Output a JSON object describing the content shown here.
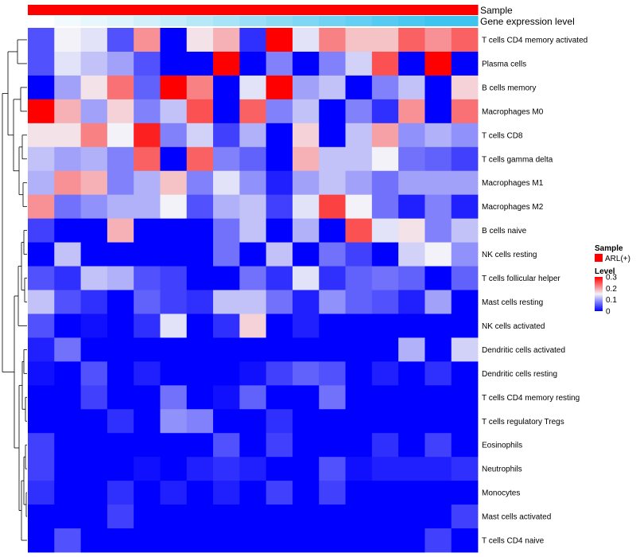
{
  "chart_data": {
    "type": "heatmap",
    "title": "",
    "annotations": {
      "sample_label": "Sample",
      "expression_label": "Gene expression level",
      "sample_color": "#ff0000",
      "expression_colors": [
        "#ffffff",
        "#f2fafd",
        "#e8f7fc",
        "#dff4fb",
        "#d2f0fa",
        "#c4ecf9",
        "#b6e8f8",
        "#a8e4f7",
        "#9adff6",
        "#8cdbf5",
        "#7ed7f4",
        "#71d3f3",
        "#63cff2",
        "#55cbf1",
        "#49c8f0",
        "#3dc5ef"
      ]
    },
    "rows": [
      {
        "label": "T cells CD4 memory activated",
        "values": [
          0.05,
          0.15,
          0.14,
          0.05,
          0.21,
          0.0,
          0.16,
          0.19,
          0.03,
          0.3,
          0.14,
          0.22,
          0.18,
          0.18,
          0.24,
          0.21,
          0.24
        ]
      },
      {
        "label": "Plasma cells",
        "values": [
          0.05,
          0.14,
          0.12,
          0.1,
          0.05,
          0.0,
          0.0,
          0.3,
          0.0,
          0.08,
          0.0,
          0.08,
          0.13,
          0.25,
          0.0,
          0.3,
          0.0
        ]
      },
      {
        "label": "B cells memory",
        "values": [
          0.0,
          0.1,
          0.16,
          0.23,
          0.06,
          0.3,
          0.22,
          0.0,
          0.14,
          0.3,
          0.1,
          0.12,
          0.0,
          0.08,
          0.12,
          0.0,
          0.17
        ]
      },
      {
        "label": "Macrophages M0",
        "values": [
          0.3,
          0.19,
          0.1,
          0.17,
          0.08,
          0.12,
          0.25,
          0.0,
          0.24,
          0.08,
          0.12,
          0.0,
          0.08,
          0.03,
          0.21,
          0.0,
          0.23
        ]
      },
      {
        "label": "T cells CD8",
        "values": [
          0.16,
          0.16,
          0.22,
          0.15,
          0.28,
          0.08,
          0.13,
          0.04,
          0.11,
          0.0,
          0.17,
          0.0,
          0.12,
          0.2,
          0.09,
          0.11,
          0.09
        ]
      },
      {
        "label": "T cells gamma delta",
        "values": [
          0.12,
          0.1,
          0.11,
          0.08,
          0.24,
          0.0,
          0.24,
          0.08,
          0.06,
          0.0,
          0.19,
          0.12,
          0.12,
          0.15,
          0.07,
          0.06,
          0.04
        ]
      },
      {
        "label": "Macrophages M1",
        "values": [
          0.11,
          0.21,
          0.19,
          0.08,
          0.11,
          0.18,
          0.08,
          0.14,
          0.09,
          0.02,
          0.1,
          0.12,
          0.1,
          0.07,
          0.1,
          0.1,
          0.1
        ]
      },
      {
        "label": "Macrophages M2",
        "values": [
          0.21,
          0.07,
          0.09,
          0.11,
          0.11,
          0.15,
          0.05,
          0.11,
          0.12,
          0.04,
          0.14,
          0.26,
          0.15,
          0.07,
          0.02,
          0.08,
          0.02
        ]
      },
      {
        "label": "B cells naive",
        "values": [
          0.04,
          0.0,
          0.0,
          0.19,
          0.0,
          0.0,
          0.0,
          0.07,
          0.12,
          0.0,
          0.11,
          0.0,
          0.25,
          0.14,
          0.16,
          0.08,
          0.12
        ]
      },
      {
        "label": "NK cells resting",
        "values": [
          0.0,
          0.12,
          0.0,
          0.0,
          0.0,
          0.0,
          0.0,
          0.07,
          0.0,
          0.12,
          0.0,
          0.07,
          0.04,
          0.0,
          0.13,
          0.15,
          0.09
        ]
      },
      {
        "label": "T cells follicular helper",
        "values": [
          0.05,
          0.03,
          0.12,
          0.11,
          0.05,
          0.04,
          0.0,
          0.0,
          0.07,
          0.03,
          0.14,
          0.03,
          0.06,
          0.07,
          0.06,
          0.0,
          0.06
        ]
      },
      {
        "label": "Mast cells resting",
        "values": [
          0.12,
          0.05,
          0.03,
          0.0,
          0.06,
          0.04,
          0.03,
          0.12,
          0.12,
          0.07,
          0.02,
          0.09,
          0.06,
          0.05,
          0.02,
          0.1,
          0.0
        ]
      },
      {
        "label": "NK cells activated",
        "values": [
          0.05,
          0.0,
          0.01,
          0.0,
          0.03,
          0.14,
          0.0,
          0.03,
          0.17,
          0.0,
          0.02,
          0.0,
          0.0,
          0.0,
          0.0,
          0.0,
          0.0
        ]
      },
      {
        "label": "Dendritic cells activated",
        "values": [
          0.02,
          0.07,
          0.0,
          0.0,
          0.0,
          0.0,
          0.0,
          0.0,
          0.0,
          0.0,
          0.0,
          0.0,
          0.0,
          0.0,
          0.11,
          0.0,
          0.13
        ]
      },
      {
        "label": "Dendritic cells resting",
        "values": [
          0.01,
          0.0,
          0.05,
          0.0,
          0.02,
          0.0,
          0.0,
          0.0,
          0.01,
          0.04,
          0.06,
          0.05,
          0.0,
          0.02,
          0.0,
          0.03,
          0.0
        ]
      },
      {
        "label": "T cells CD4 memory resting",
        "values": [
          0.0,
          0.0,
          0.04,
          0.0,
          0.0,
          0.07,
          0.0,
          0.01,
          0.06,
          0.0,
          0.0,
          0.07,
          0.0,
          0.0,
          0.0,
          0.0,
          0.0
        ]
      },
      {
        "label": "T cells regulatory  Tregs",
        "values": [
          0.0,
          0.0,
          0.0,
          0.03,
          0.0,
          0.09,
          0.08,
          0.0,
          0.0,
          0.03,
          0.0,
          0.0,
          0.0,
          0.0,
          0.0,
          0.0,
          0.0
        ]
      },
      {
        "label": "Eosinophils",
        "values": [
          0.04,
          0.0,
          0.0,
          0.0,
          0.0,
          0.0,
          0.0,
          0.05,
          0.0,
          0.04,
          0.0,
          0.0,
          0.0,
          0.03,
          0.0,
          0.04,
          0.0
        ]
      },
      {
        "label": "Neutrophils",
        "values": [
          0.04,
          0.0,
          0.0,
          0.0,
          0.01,
          0.0,
          0.02,
          0.03,
          0.02,
          0.0,
          0.0,
          0.05,
          0.01,
          0.02,
          0.02,
          0.02,
          0.03
        ]
      },
      {
        "label": "Monocytes",
        "values": [
          0.03,
          0.0,
          0.0,
          0.03,
          0.0,
          0.02,
          0.0,
          0.02,
          0.0,
          0.04,
          0.0,
          0.04,
          0.0,
          0.0,
          0.0,
          0.0,
          0.0
        ]
      },
      {
        "label": "Mast cells activated",
        "values": [
          0.0,
          0.0,
          0.0,
          0.04,
          0.0,
          0.0,
          0.0,
          0.0,
          0.0,
          0.0,
          0.0,
          0.0,
          0.0,
          0.0,
          0.0,
          0.0,
          0.04
        ]
      },
      {
        "label": "T cells CD4 naive",
        "values": [
          0.0,
          0.05,
          0.0,
          0.0,
          0.0,
          0.0,
          0.0,
          0.0,
          0.0,
          0.0,
          0.0,
          0.0,
          0.0,
          0.0,
          0.0,
          0.04,
          0.0
        ]
      }
    ],
    "color_scale": {
      "min": 0,
      "max": 0.3,
      "stops": [
        {
          "value": 0,
          "color": "#0000ff"
        },
        {
          "value": 0.15,
          "color": "#f2f2f8"
        },
        {
          "value": 0.3,
          "color": "#ff0000"
        }
      ]
    },
    "legend": {
      "sample_title": "Sample",
      "sample_entry": "ARL(+)",
      "level_title": "Level",
      "ticks": [
        "0.3",
        "0.2",
        "0.1",
        "0"
      ]
    }
  }
}
